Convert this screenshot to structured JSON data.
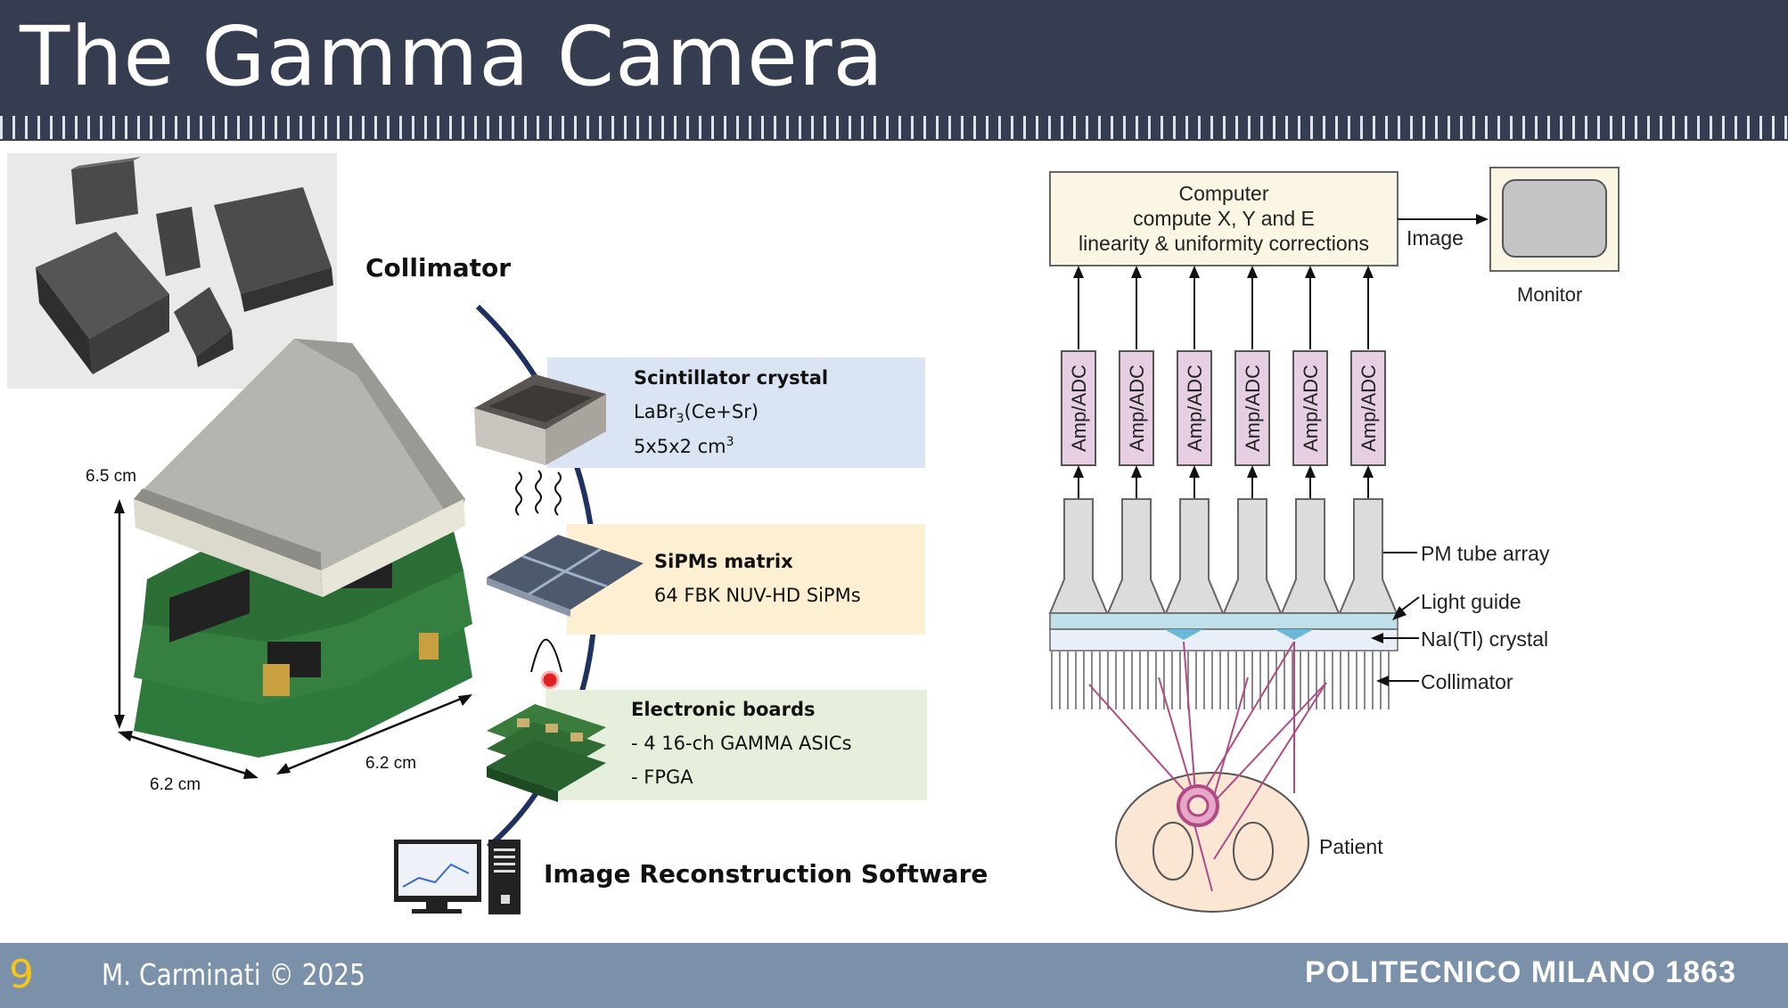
{
  "header": {
    "title": "The Gamma Camera"
  },
  "left_diagram": {
    "collimator_label": "Collimator",
    "dimensions": {
      "height": "6.5 cm",
      "width_left": "6.2 cm",
      "width_right": "6.2 cm"
    },
    "boxes": [
      {
        "title": "Scintillator crystal",
        "line1_main": "LaBr",
        "line1_sub": "3",
        "line1_rest": "(Ce+Sr)",
        "line2_main": "5x5x2 cm",
        "line2_sup": "3",
        "color": "#dbe4f3"
      },
      {
        "title": "SiPMs matrix",
        "line1": "64 FBK NUV-HD SiPMs",
        "color": "#fdf0d2"
      },
      {
        "title": "Electronic boards",
        "line1": "- 4 16-ch GAMMA ASICs",
        "line2": "- FPGA",
        "color": "#e6eedc"
      }
    ],
    "software_label": "Image Reconstruction Software"
  },
  "right_diagram": {
    "computer_lines": [
      "Computer",
      "compute X, Y and E",
      "linearity & uniformity corrections"
    ],
    "image_label": "Image",
    "monitor_label": "Monitor",
    "amp_label": "Amp/ADC",
    "amp_count": 6,
    "labels": {
      "pm_tube": "PM tube array",
      "light_guide": "Light guide",
      "crystal": "NaI(Tl) crystal",
      "collimator": "Collimator",
      "patient": "Patient"
    }
  },
  "footer": {
    "slide_number": "9",
    "author": "M. Carminati © 2025",
    "brand": "POLITECNICO MILANO 1863"
  },
  "colors": {
    "header": "#363d50",
    "footer": "#7b91aa",
    "slide_number": "#f5c518",
    "arc": "#1e3160",
    "amp_box": "#e7cfe3",
    "computer_box": "#fbf6e3",
    "crystal": "#cfe6ee",
    "patient": "#fbe6d4",
    "ray": "#b04a86"
  }
}
